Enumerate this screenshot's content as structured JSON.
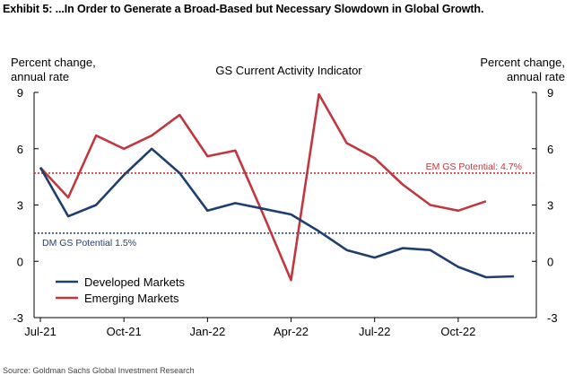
{
  "exhibit_title": "Exhibit 5: ...In Order to Generate a Broad-Based but Necessary Slowdown in Global Growth.",
  "source": "Source: Goldman Sachs Global Investment Research",
  "chart_data": {
    "type": "line",
    "title": "GS Current Activity Indicator",
    "ylabel_left": "Percent change, annual rate",
    "ylabel_right": "Percent change, annual rate",
    "ylim": [
      -3,
      9
    ],
    "yticks": [
      -3,
      0,
      3,
      6,
      9
    ],
    "x": [
      "Jul-21",
      "Aug-21",
      "Sep-21",
      "Oct-21",
      "Nov-21",
      "Dec-21",
      "Jan-22",
      "Feb-22",
      "Mar-22",
      "Apr-22",
      "May-22",
      "Jun-22",
      "Jul-22",
      "Aug-22",
      "Sep-22",
      "Oct-22",
      "Nov-22",
      "Dec-22"
    ],
    "xticks": [
      "Jul-21",
      "Oct-21",
      "Jan-22",
      "Apr-22",
      "Jul-22",
      "Oct-22"
    ],
    "grid": false,
    "legend_position": "bottom-left",
    "series": [
      {
        "name": "Developed Markets",
        "color": "#1f3f6e",
        "values": [
          5.0,
          2.4,
          3.0,
          4.6,
          6.0,
          4.7,
          2.7,
          3.1,
          2.8,
          2.5,
          1.6,
          0.6,
          0.2,
          0.7,
          0.6,
          -0.3,
          -0.85,
          -0.8
        ]
      },
      {
        "name": "Emerging Markets",
        "color": "#c0383f",
        "values": [
          5.0,
          3.4,
          6.7,
          6.0,
          6.7,
          7.8,
          5.6,
          5.9,
          2.5,
          -1.0,
          8.9,
          6.3,
          5.5,
          4.1,
          3.0,
          2.7,
          3.2,
          null
        ]
      }
    ],
    "reference_lines": [
      {
        "label": "EM GS Potential: 4.7%",
        "value": 4.7,
        "color": "#c0383f"
      },
      {
        "label": "DM GS Potential 1.5%",
        "value": 1.5,
        "color": "#1f3f6e"
      }
    ]
  }
}
